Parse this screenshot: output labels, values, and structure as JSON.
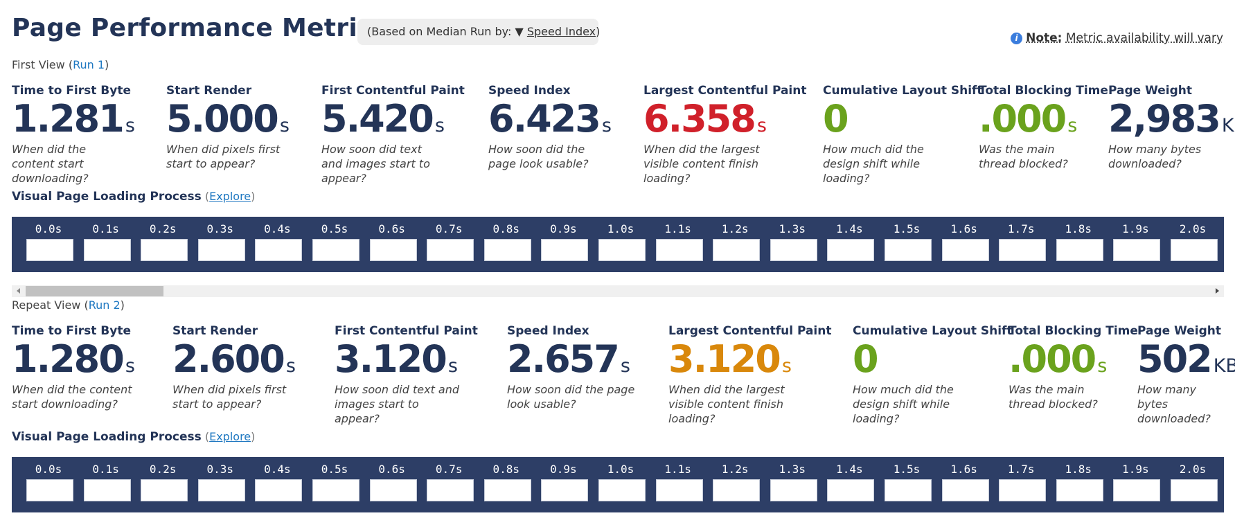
{
  "header": {
    "title": "Page Performance Metrics",
    "median_prefix": "(Based on Median Run by: ",
    "median_arrow": "▼",
    "median_metric": "Speed Index",
    "median_suffix": ")",
    "note_label": "Note:",
    "note_text": "Metric availability will vary"
  },
  "first_view": {
    "label_prefix": "First View (",
    "run_link": "Run 1",
    "label_suffix": ")",
    "metrics": [
      {
        "name": "Time to First Byte",
        "value": "1.281",
        "unit": "s",
        "desc": "When did the content start downloading?",
        "color": "#233457"
      },
      {
        "name": "Start Render",
        "value": "5.000",
        "unit": "s",
        "desc": "When did pixels first start to appear?",
        "color": "#233457"
      },
      {
        "name": "First Contentful Paint",
        "value": "5.420",
        "unit": "s",
        "desc": "How soon did text and images start to appear?",
        "color": "#233457"
      },
      {
        "name": "Speed Index",
        "value": "6.423",
        "unit": "s",
        "desc": "How soon did the page look usable?",
        "color": "#233457"
      },
      {
        "name": "Largest Contentful Paint",
        "value": "6.358",
        "unit": "s",
        "desc": "When did the largest visible content finish loading?",
        "color": "#d0202a"
      },
      {
        "name": "Cumulative Layout Shift",
        "value": "0",
        "unit": "",
        "desc": "How much did the design shift while loading?",
        "color": "#6aa21d"
      },
      {
        "name": "Total Blocking Time",
        "value": ".000",
        "unit": "s",
        "desc": "Was the main thread blocked?",
        "color": "#6aa21d"
      },
      {
        "name": "Page Weight",
        "value": "2,983",
        "unit": "KB",
        "desc": "How many bytes downloaded?",
        "color": "#233457"
      }
    ],
    "visual_title": "Visual Page Loading Process",
    "explore_open": " (",
    "explore_label": "Explore",
    "explore_close": ")"
  },
  "repeat_view": {
    "label_prefix": "Repeat View (",
    "run_link": "Run 2",
    "label_suffix": ")",
    "metrics": [
      {
        "name": "Time to First Byte",
        "value": "1.280",
        "unit": "s",
        "desc": "When did the content start downloading?",
        "color": "#233457"
      },
      {
        "name": "Start Render",
        "value": "2.600",
        "unit": "s",
        "desc": "When did pixels first start to appear?",
        "color": "#233457"
      },
      {
        "name": "First Contentful Paint",
        "value": "3.120",
        "unit": "s",
        "desc": "How soon did text and images start to appear?",
        "color": "#233457"
      },
      {
        "name": "Speed Index",
        "value": "2.657",
        "unit": "s",
        "desc": "How soon did the page look usable?",
        "color": "#233457"
      },
      {
        "name": "Largest Contentful Paint",
        "value": "3.120",
        "unit": "s",
        "desc": "When did the largest visible content finish loading?",
        "color": "#d9880b"
      },
      {
        "name": "Cumulative Layout Shift",
        "value": "0",
        "unit": "",
        "desc": "How much did the design shift while loading?",
        "color": "#6aa21d"
      },
      {
        "name": "Total Blocking Time",
        "value": ".000",
        "unit": "s",
        "desc": "Was the main thread blocked?",
        "color": "#6aa21d"
      },
      {
        "name": "Page Weight",
        "value": "502",
        "unit": "KB",
        "desc": "How many bytes downloaded?",
        "color": "#233457"
      }
    ],
    "visual_title": "Visual Page Loading Process",
    "explore_open": " (",
    "explore_label": "Explore",
    "explore_close": ")"
  },
  "filmstrip_times": [
    "0.0s",
    "0.1s",
    "0.2s",
    "0.3s",
    "0.4s",
    "0.5s",
    "0.6s",
    "0.7s",
    "0.8s",
    "0.9s",
    "1.0s",
    "1.1s",
    "1.2s",
    "1.3s",
    "1.4s",
    "1.5s",
    "1.6s",
    "1.7s",
    "1.8s",
    "1.9s",
    "2.0s"
  ]
}
